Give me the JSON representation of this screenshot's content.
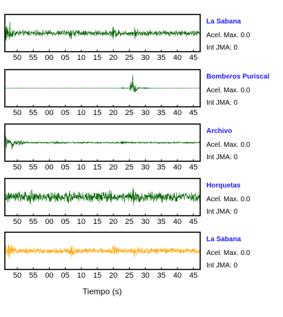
{
  "chart_data": {
    "type": "line",
    "xlabel": "Tiempo (s)",
    "tick_labels": [
      "50",
      "55",
      "00",
      "05",
      "10",
      "15",
      "20",
      "25",
      "30",
      "35",
      "40",
      "45"
    ],
    "panels": [
      {
        "name": "La Sabana",
        "accel_label": "Acel. Max. 0.0",
        "int_label": "Int JMA: 0",
        "color": "#006400",
        "amplitude": 0.55,
        "events": [
          {
            "t": 0.0,
            "amp": 2.2
          },
          {
            "t": 1.2,
            "amp": 1.4
          },
          {
            "t": 18.5,
            "amp": 1.1
          },
          {
            "t": 30.5,
            "amp": 1.0
          },
          {
            "t": 36.5,
            "amp": 0.9
          }
        ]
      },
      {
        "name": "Bomberos Puriscal",
        "accel_label": "Acel. Max. 0.0",
        "int_label": "Int JMA: 0",
        "color": "#006400",
        "amplitude": 0.02,
        "events": [
          {
            "t": 33.0,
            "amp": 0.3
          },
          {
            "t": 35.5,
            "amp": 2.0
          },
          {
            "t": 36.0,
            "amp": 1.4
          },
          {
            "t": 39.0,
            "amp": 0.3
          }
        ]
      },
      {
        "name": "Archivo",
        "accel_label": "Acel. Max. 0.0",
        "int_label": "Int JMA: 0",
        "color": "#006400",
        "amplitude": 0.15,
        "events": [
          {
            "t": 0.0,
            "amp": 1.8
          },
          {
            "t": 2.0,
            "amp": 1.2
          },
          {
            "t": 4.0,
            "amp": 0.7
          },
          {
            "t": 14.0,
            "amp": 0.35
          },
          {
            "t": 33.0,
            "amp": 0.3
          }
        ]
      },
      {
        "name": "Horquetas",
        "accel_label": "Acel. Max. 0.0",
        "int_label": "Int JMA: 0",
        "color": "#006400",
        "amplitude": 0.95,
        "events": [
          {
            "t": 7.0,
            "amp": 1.0
          },
          {
            "t": 18.0,
            "amp": 1.0
          },
          {
            "t": 29.0,
            "amp": 1.1
          },
          {
            "t": 36.0,
            "amp": 1.0
          }
        ]
      },
      {
        "name": "La Sabana",
        "accel_label": "Acel. Max. 0.0",
        "int_label": "Int JMA: 0",
        "color": "#ffa500",
        "amplitude": 0.55,
        "events": [
          {
            "t": 0.0,
            "amp": 2.2
          },
          {
            "t": 1.2,
            "amp": 1.4
          },
          {
            "t": 18.5,
            "amp": 1.1
          },
          {
            "t": 30.5,
            "amp": 1.0
          },
          {
            "t": 36.5,
            "amp": 0.9
          }
        ]
      }
    ]
  }
}
